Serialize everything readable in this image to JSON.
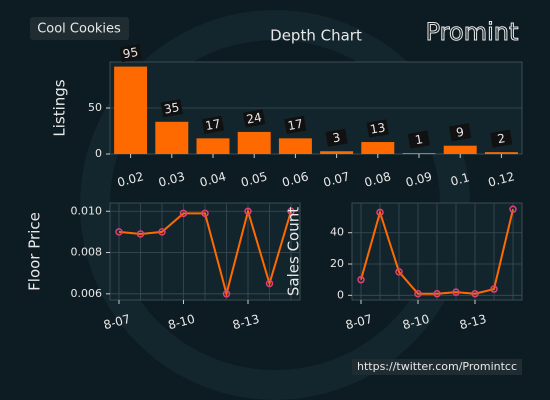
{
  "header": {
    "badge": "Cool Cookies",
    "logo": "Promint"
  },
  "footer": {
    "link": "https://twitter.com/Promintcc"
  },
  "chart_data": [
    {
      "type": "bar",
      "title": "Depth Chart",
      "ylabel": "Listings",
      "categories": [
        "0.02",
        "0.03",
        "0.04",
        "0.05",
        "0.06",
        "0.07",
        "0.08",
        "0.09",
        "0.1",
        "0.12"
      ],
      "values": [
        95,
        35,
        17,
        24,
        17,
        3,
        13,
        1,
        9,
        2
      ],
      "color": "#ff6a00",
      "ylim": [
        0,
        100
      ],
      "yticks": [
        0,
        50
      ],
      "grid": true
    },
    {
      "type": "line",
      "ylabel": "Floor Price",
      "categories": [
        "8-07",
        null,
        null,
        "8-10",
        null,
        null,
        "8-13",
        null,
        null
      ],
      "values": [
        0.009,
        0.0089,
        0.009,
        0.0099,
        0.0099,
        0.006,
        0.01,
        0.0065,
        0.01
      ],
      "color": "#ff6a00",
      "marker_color": "#e0407a",
      "ylim": [
        0.0057,
        0.0104
      ],
      "yticks": [
        {
          "value": 0.006,
          "label": "0.006"
        },
        {
          "value": 0.008,
          "label": "0.008"
        },
        {
          "value": 0.01,
          "label": "0.010"
        }
      ],
      "grid": true
    },
    {
      "type": "line",
      "ylabel": "Sales Count",
      "categories": [
        "8-07",
        null,
        null,
        "8-10",
        null,
        null,
        "8-13",
        null,
        null
      ],
      "values": [
        10,
        53,
        15,
        1,
        1,
        2,
        1,
        4,
        55
      ],
      "color": "#ff6a00",
      "marker_color": "#e0407a",
      "ylim": [
        -3,
        59
      ],
      "yticks": [
        0,
        20,
        40
      ],
      "grid": true
    }
  ]
}
